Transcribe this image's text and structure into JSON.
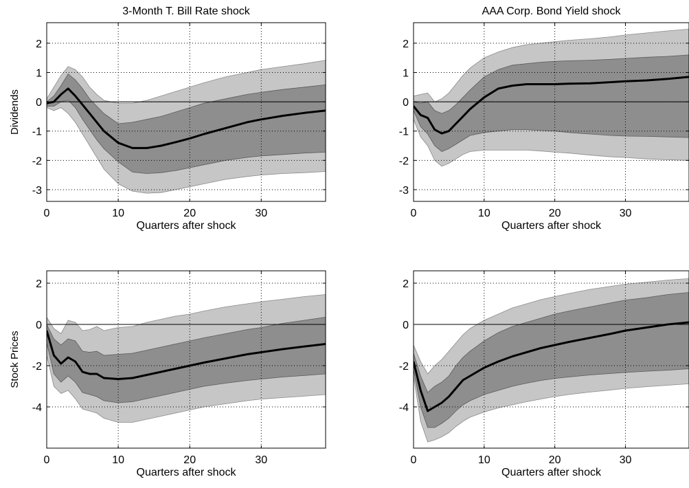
{
  "chart_data": [
    {
      "type": "area",
      "title": "3-Month T. Bill Rate shock",
      "xlabel": "Quarters after shock",
      "ylabel": "Dividends",
      "xlim": [
        0,
        39
      ],
      "ylim": [
        -3.4,
        2.7
      ],
      "xticks": [
        0,
        10,
        20,
        30
      ],
      "yticks": [
        -3,
        -2,
        -1,
        0,
        1,
        2
      ],
      "grid": true,
      "x": [
        0,
        1,
        2,
        3,
        4,
        5,
        6,
        7,
        8,
        10,
        12,
        14,
        16,
        18,
        20,
        22,
        25,
        28,
        30,
        33,
        36,
        39
      ],
      "median": [
        -0.05,
        0.0,
        0.25,
        0.45,
        0.2,
        -0.1,
        -0.4,
        -0.7,
        -1.0,
        -1.4,
        -1.58,
        -1.58,
        -1.5,
        -1.38,
        -1.25,
        -1.1,
        -0.9,
        -0.7,
        -0.6,
        -0.48,
        -0.38,
        -0.3
      ],
      "inner_low": [
        -0.15,
        -0.15,
        0.0,
        0.05,
        -0.2,
        -0.6,
        -0.95,
        -1.3,
        -1.6,
        -2.05,
        -2.4,
        -2.45,
        -2.42,
        -2.35,
        -2.25,
        -2.15,
        -2.0,
        -1.9,
        -1.85,
        -1.8,
        -1.75,
        -1.72
      ],
      "inner_high": [
        0.0,
        0.2,
        0.55,
        0.95,
        0.75,
        0.45,
        0.1,
        -0.15,
        -0.4,
        -0.75,
        -0.7,
        -0.6,
        -0.5,
        -0.35,
        -0.2,
        -0.05,
        0.1,
        0.25,
        0.32,
        0.42,
        0.5,
        0.58
      ],
      "outer_low": [
        -0.2,
        -0.3,
        -0.2,
        -0.4,
        -0.7,
        -1.1,
        -1.5,
        -1.9,
        -2.3,
        -2.8,
        -3.05,
        -3.12,
        -3.1,
        -3.0,
        -2.9,
        -2.8,
        -2.65,
        -2.55,
        -2.5,
        -2.45,
        -2.42,
        -2.38
      ],
      "outer_high": [
        0.1,
        0.5,
        0.9,
        1.2,
        1.1,
        0.85,
        0.5,
        0.25,
        0.05,
        -0.05,
        -0.05,
        0.05,
        0.2,
        0.35,
        0.5,
        0.65,
        0.85,
        1.0,
        1.1,
        1.2,
        1.3,
        1.42
      ]
    },
    {
      "type": "area",
      "title": "AAA Corp. Bond Yield shock",
      "xlabel": "Quarters after shock",
      "ylabel": "",
      "xlim": [
        0,
        39
      ],
      "ylim": [
        -3.4,
        2.7
      ],
      "xticks": [
        0,
        10,
        20,
        30
      ],
      "yticks": [
        -3,
        -2,
        -1,
        0,
        1,
        2
      ],
      "grid": true,
      "x": [
        0,
        1,
        2,
        3,
        4,
        5,
        6,
        7,
        8,
        10,
        12,
        14,
        16,
        18,
        20,
        22,
        25,
        28,
        30,
        33,
        36,
        39
      ],
      "median": [
        -0.15,
        -0.45,
        -0.55,
        -0.95,
        -1.08,
        -1.0,
        -0.75,
        -0.5,
        -0.25,
        0.15,
        0.45,
        0.55,
        0.6,
        0.6,
        0.6,
        0.62,
        0.63,
        0.67,
        0.7,
        0.73,
        0.78,
        0.85
      ],
      "inner_low": [
        -0.3,
        -0.85,
        -1.1,
        -1.5,
        -1.7,
        -1.6,
        -1.45,
        -1.3,
        -1.15,
        -1.05,
        -1.0,
        -0.95,
        -0.95,
        -0.98,
        -1.0,
        -1.05,
        -1.1,
        -1.15,
        -1.17,
        -1.18,
        -1.2,
        -1.22
      ],
      "inner_high": [
        0.0,
        -0.05,
        0.0,
        -0.3,
        -0.4,
        -0.3,
        -0.1,
        0.15,
        0.4,
        0.85,
        1.1,
        1.25,
        1.3,
        1.35,
        1.38,
        1.4,
        1.42,
        1.45,
        1.48,
        1.52,
        1.55,
        1.6
      ],
      "outer_low": [
        -0.6,
        -1.2,
        -1.5,
        -2.0,
        -2.2,
        -2.1,
        -1.95,
        -1.8,
        -1.7,
        -1.65,
        -1.65,
        -1.65,
        -1.65,
        -1.68,
        -1.72,
        -1.75,
        -1.82,
        -1.88,
        -1.9,
        -1.95,
        -1.98,
        -2.0
      ],
      "outer_high": [
        0.2,
        0.25,
        0.3,
        0.0,
        0.1,
        0.3,
        0.6,
        0.9,
        1.15,
        1.5,
        1.7,
        1.85,
        1.95,
        2.0,
        2.05,
        2.1,
        2.15,
        2.22,
        2.28,
        2.35,
        2.42,
        2.48
      ]
    },
    {
      "type": "area",
      "title": "",
      "xlabel": "Quarters after shock",
      "ylabel": "Stock Prices",
      "xlim": [
        0,
        39
      ],
      "ylim": [
        -6,
        2.6
      ],
      "xticks": [
        0,
        10,
        20,
        30
      ],
      "yticks": [
        -4,
        -2,
        0,
        2
      ],
      "grid": true,
      "x": [
        0,
        1,
        2,
        3,
        4,
        5,
        6,
        7,
        8,
        10,
        12,
        14,
        16,
        18,
        20,
        22,
        25,
        28,
        30,
        33,
        36,
        39
      ],
      "median": [
        -0.3,
        -1.5,
        -1.9,
        -1.6,
        -1.8,
        -2.3,
        -2.4,
        -2.4,
        -2.6,
        -2.65,
        -2.6,
        -2.45,
        -2.3,
        -2.15,
        -2.0,
        -1.85,
        -1.65,
        -1.45,
        -1.35,
        -1.2,
        -1.07,
        -0.95
      ],
      "inner_low": [
        -0.9,
        -2.4,
        -2.8,
        -2.5,
        -2.8,
        -3.3,
        -3.4,
        -3.5,
        -3.7,
        -3.8,
        -3.75,
        -3.6,
        -3.45,
        -3.3,
        -3.15,
        -3.0,
        -2.85,
        -2.72,
        -2.65,
        -2.55,
        -2.48,
        -2.4
      ],
      "inner_high": [
        0.0,
        -0.7,
        -1.0,
        -0.7,
        -0.8,
        -1.3,
        -1.35,
        -1.3,
        -1.5,
        -1.45,
        -1.4,
        -1.25,
        -1.1,
        -0.95,
        -0.8,
        -0.65,
        -0.45,
        -0.25,
        -0.15,
        0.05,
        0.2,
        0.35
      ],
      "outer_low": [
        -1.5,
        -3.0,
        -3.35,
        -3.2,
        -3.6,
        -4.1,
        -4.2,
        -4.3,
        -4.55,
        -4.75,
        -4.75,
        -4.6,
        -4.45,
        -4.3,
        -4.15,
        -4.0,
        -3.85,
        -3.7,
        -3.62,
        -3.55,
        -3.48,
        -3.4
      ],
      "outer_high": [
        0.35,
        -0.2,
        -0.45,
        0.2,
        0.1,
        -0.3,
        -0.25,
        -0.1,
        -0.3,
        -0.15,
        -0.1,
        0.1,
        0.25,
        0.4,
        0.5,
        0.65,
        0.85,
        1.0,
        1.1,
        1.22,
        1.35,
        1.45
      ]
    },
    {
      "type": "area",
      "title": "",
      "xlabel": "Quarters after shock",
      "ylabel": "",
      "xlim": [
        0,
        39
      ],
      "ylim": [
        -6,
        2.6
      ],
      "xticks": [
        0,
        10,
        20,
        30
      ],
      "yticks": [
        -4,
        -2,
        0,
        2
      ],
      "grid": true,
      "x": [
        0,
        1,
        2,
        3,
        4,
        5,
        6,
        7,
        8,
        10,
        12,
        14,
        16,
        18,
        20,
        22,
        25,
        28,
        30,
        33,
        36,
        39
      ],
      "median": [
        -1.8,
        -3.2,
        -4.2,
        -4.0,
        -3.8,
        -3.5,
        -3.1,
        -2.7,
        -2.5,
        -2.1,
        -1.8,
        -1.55,
        -1.35,
        -1.15,
        -1.0,
        -0.85,
        -0.65,
        -0.45,
        -0.3,
        -0.15,
        0.0,
        0.1
      ],
      "inner_low": [
        -2.2,
        -4.0,
        -5.0,
        -5.0,
        -4.8,
        -4.55,
        -4.2,
        -3.9,
        -3.7,
        -3.4,
        -3.2,
        -3.0,
        -2.85,
        -2.72,
        -2.62,
        -2.55,
        -2.45,
        -2.38,
        -2.33,
        -2.27,
        -2.22,
        -2.15
      ],
      "inner_high": [
        -1.4,
        -2.5,
        -3.3,
        -3.0,
        -2.8,
        -2.5,
        -2.0,
        -1.6,
        -1.3,
        -0.8,
        -0.4,
        -0.1,
        0.1,
        0.3,
        0.5,
        0.65,
        0.85,
        1.05,
        1.18,
        1.3,
        1.45,
        1.55
      ],
      "outer_low": [
        -2.5,
        -4.7,
        -5.7,
        -5.6,
        -5.45,
        -5.25,
        -4.95,
        -4.7,
        -4.5,
        -4.25,
        -4.05,
        -3.9,
        -3.75,
        -3.62,
        -3.5,
        -3.4,
        -3.28,
        -3.18,
        -3.1,
        -3.02,
        -2.95,
        -2.88
      ],
      "outer_high": [
        -1.0,
        -1.8,
        -2.4,
        -2.0,
        -1.7,
        -1.3,
        -0.9,
        -0.5,
        -0.2,
        0.2,
        0.5,
        0.8,
        1.0,
        1.2,
        1.35,
        1.5,
        1.7,
        1.85,
        1.95,
        2.05,
        2.15,
        2.22
      ]
    }
  ]
}
